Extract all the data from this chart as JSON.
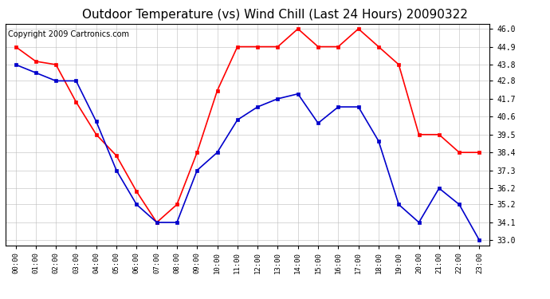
{
  "title": "Outdoor Temperature (vs) Wind Chill (Last 24 Hours) 20090322",
  "copyright": "Copyright 2009 Cartronics.com",
  "x_labels": [
    "00:00",
    "01:00",
    "02:00",
    "03:00",
    "04:00",
    "05:00",
    "06:00",
    "07:00",
    "08:00",
    "09:00",
    "10:00",
    "11:00",
    "12:00",
    "13:00",
    "14:00",
    "15:00",
    "16:00",
    "17:00",
    "18:00",
    "19:00",
    "20:00",
    "21:00",
    "22:00",
    "23:00"
  ],
  "temp_red": [
    44.9,
    44.0,
    43.8,
    41.5,
    39.5,
    38.2,
    36.0,
    34.1,
    35.2,
    38.4,
    42.2,
    44.9,
    44.9,
    44.9,
    46.0,
    44.9,
    44.9,
    46.0,
    44.9,
    43.8,
    39.5,
    39.5,
    38.4,
    38.4
  ],
  "temp_blue": [
    43.8,
    43.3,
    42.8,
    42.8,
    40.3,
    37.3,
    35.2,
    34.1,
    34.1,
    37.3,
    38.4,
    40.4,
    41.2,
    41.7,
    42.0,
    40.2,
    41.2,
    41.2,
    39.1,
    35.2,
    34.1,
    36.2,
    35.2,
    33.0
  ],
  "y_min": 33.0,
  "y_max": 46.0,
  "y_ticks": [
    33.0,
    34.1,
    35.2,
    36.2,
    37.3,
    38.4,
    39.5,
    40.6,
    41.7,
    42.8,
    43.8,
    44.9,
    46.0
  ],
  "red_color": "#FF0000",
  "blue_color": "#0000CC",
  "grid_color": "#BBBBBB",
  "bg_color": "#FFFFFF",
  "plot_bg": "#FFFFFF",
  "title_fontsize": 11,
  "copyright_fontsize": 7
}
